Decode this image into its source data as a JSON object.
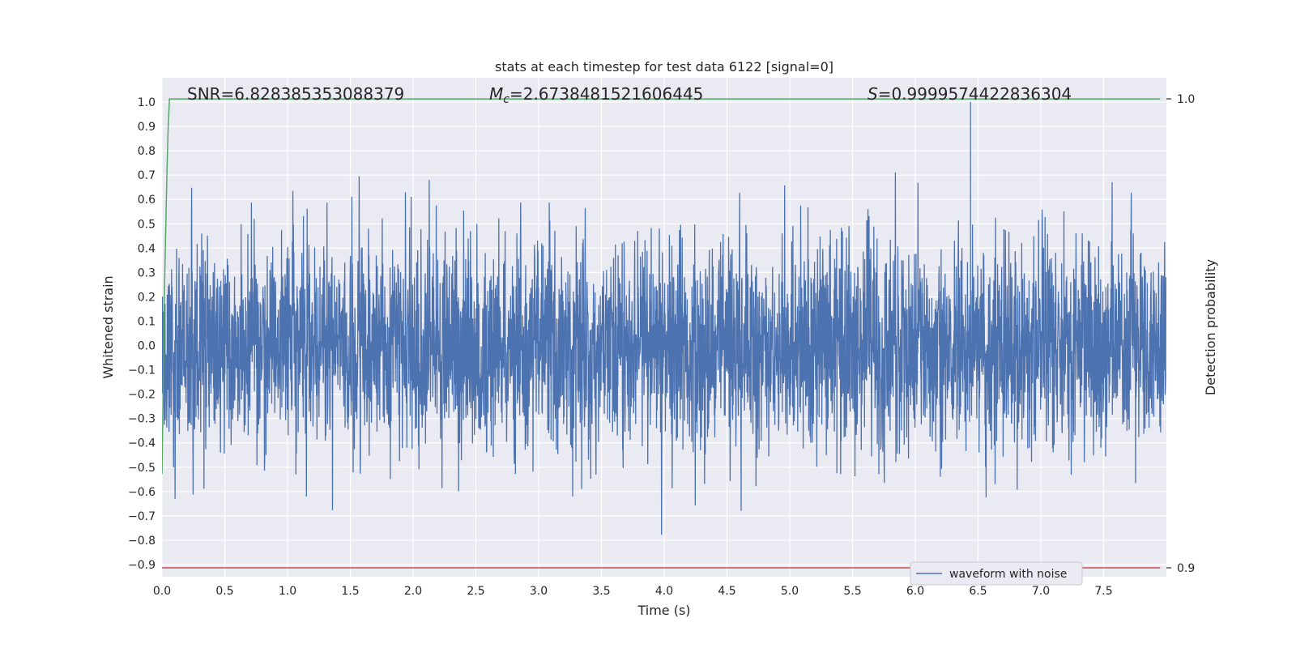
{
  "chart_data": {
    "type": "line",
    "title": "stats at each timestep for test data 6122 [signal=0]",
    "xlabel": "Time (s)",
    "ylabel": "Whitened strain",
    "y2label": "Detection probability",
    "xlim": [
      0.0,
      8.0
    ],
    "ylim": [
      -0.95,
      1.1
    ],
    "y2lim": [
      0.8981,
      1.0045
    ],
    "x_ticks": [
      "0.0",
      "0.5",
      "1.0",
      "1.5",
      "2.0",
      "2.5",
      "3.0",
      "3.5",
      "4.0",
      "4.5",
      "5.0",
      "5.5",
      "6.0",
      "6.5",
      "7.0",
      "7.5"
    ],
    "y_ticks": [
      "−0.9",
      "−0.8",
      "−0.7",
      "−0.6",
      "−0.5",
      "−0.4",
      "−0.3",
      "−0.2",
      "−0.1",
      "0.0",
      "0.1",
      "0.2",
      "0.3",
      "0.4",
      "0.5",
      "0.6",
      "0.7",
      "0.8",
      "0.9",
      "1.0"
    ],
    "y2_ticks": [
      "0.9",
      "1.0"
    ],
    "grid": true,
    "legend_position": "bottom-right",
    "annotations": {
      "snr": "SNR=6.828385353088379",
      "mc_symbol": "M",
      "mc_sub": "c",
      "mc_value": "=2.6738481521606445",
      "s_symbol": "S",
      "s_value": "=0.9999574422836304"
    },
    "series": [
      {
        "name": "waveform with noise",
        "color": "#4c72b0",
        "axis": "left",
        "description_stats": {
          "x_range": [
            0.0,
            8.0
          ],
          "typical_amplitude": 0.3,
          "max": 1.0,
          "min": -0.86
        }
      },
      {
        "axis": "right",
        "color": "#55a868",
        "x": [
          0.0,
          0.02,
          0.04,
          0.05,
          0.06,
          0.08,
          7.95
        ],
        "y": [
          0.92,
          0.96,
          0.985,
          0.995,
          1.0,
          1.0,
          1.0
        ]
      },
      {
        "axis": "right",
        "color": "#c44e52",
        "x": [
          0.0,
          7.95
        ],
        "y": [
          0.9,
          0.9
        ]
      }
    ]
  }
}
